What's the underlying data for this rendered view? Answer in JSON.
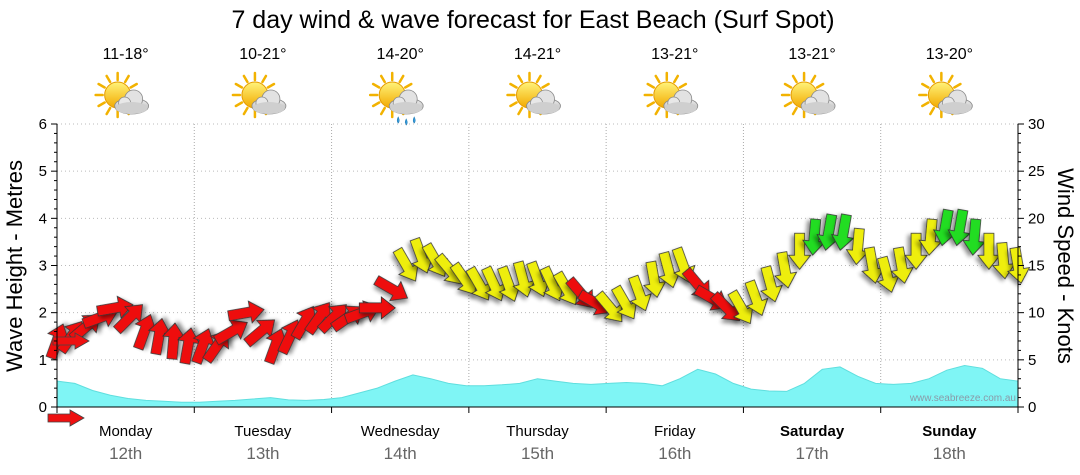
{
  "chart_data": {
    "type": "line",
    "title": "7 day wind & wave forecast for East Beach (Surf Spot)",
    "ylabel_left": "Wave Height - Metres",
    "ylabel_right": "Wind Speed - Knots",
    "ylim_left": [
      0,
      6
    ],
    "ylim_right": [
      0,
      30
    ],
    "yticks_left": [
      "0",
      "1",
      "2",
      "3",
      "4",
      "5",
      "6"
    ],
    "yticks_right": [
      "0",
      "5",
      "10",
      "15",
      "20",
      "25",
      "30"
    ],
    "days": [
      {
        "name": "Monday",
        "date": "12th",
        "temp": "11-18°",
        "weather": "partly-cloudy",
        "bold": false
      },
      {
        "name": "Tuesday",
        "date": "13th",
        "temp": "10-21°",
        "weather": "partly-cloudy",
        "bold": false
      },
      {
        "name": "Wednesday",
        "date": "14th",
        "temp": "14-20°",
        "weather": "showers",
        "bold": false
      },
      {
        "name": "Thursday",
        "date": "15th",
        "temp": "14-21°",
        "weather": "partly-cloudy",
        "bold": false
      },
      {
        "name": "Friday",
        "date": "16th",
        "temp": "13-21°",
        "weather": "partly-cloudy",
        "bold": false
      },
      {
        "name": "Saturday",
        "date": "17th",
        "temp": "13-21°",
        "weather": "partly-cloudy",
        "bold": true
      },
      {
        "name": "Sunday",
        "date": "18th",
        "temp": "13-20°",
        "weather": "partly-cloudy",
        "bold": true
      }
    ],
    "wave_height_m": [
      0.55,
      0.5,
      0.35,
      0.25,
      0.18,
      0.14,
      0.12,
      0.1,
      0.1,
      0.12,
      0.14,
      0.17,
      0.2,
      0.15,
      0.14,
      0.16,
      0.2,
      0.3,
      0.4,
      0.55,
      0.68,
      0.6,
      0.5,
      0.45,
      0.45,
      0.47,
      0.5,
      0.6,
      0.55,
      0.5,
      0.48,
      0.5,
      0.52,
      0.5,
      0.45,
      0.6,
      0.8,
      0.7,
      0.5,
      0.38,
      0.34,
      0.33,
      0.5,
      0.8,
      0.85,
      0.65,
      0.5,
      0.48,
      0.5,
      0.6,
      0.78,
      0.88,
      0.82,
      0.6,
      0.55
    ],
    "wind_knots": [
      7,
      7.5,
      8.5,
      9.5,
      10.5,
      9.5,
      8,
      7.5,
      7,
      6.5,
      6.5,
      6.5,
      8,
      10,
      8,
      6.5,
      7.5,
      9,
      9.5,
      9.5,
      9.5,
      10,
      10.5,
      12.5,
      15,
      16,
      15.5,
      14.5,
      13.5,
      13,
      13,
      13,
      13.5,
      13.5,
      13,
      12.5,
      12,
      11,
      10.5,
      11,
      12,
      13.5,
      14.5,
      15,
      13,
      11.5,
      10.5,
      10.5,
      11.5,
      13,
      14.5,
      16.5,
      18,
      18.5,
      18.5,
      17,
      15,
      14,
      15,
      16.5,
      18,
      19,
      19,
      18,
      16.5,
      15.5,
      15
    ],
    "wind_colors": [
      "#ee1010",
      "#ee1010",
      "#ee1010",
      "#ee1010",
      "#ee1010",
      "#ee1010",
      "#ee1010",
      "#ee1010",
      "#ee1010",
      "#ee1010",
      "#ee1010",
      "#ee1010",
      "#ee1010",
      "#ee1010",
      "#ee1010",
      "#ee1010",
      "#ee1010",
      "#ee1010",
      "#ee1010",
      "#ee1010",
      "#ee1010",
      "#ee1010",
      "#ee1010",
      "#ee1010",
      "#eeee10",
      "#eeee10",
      "#eeee10",
      "#eeee10",
      "#eeee10",
      "#eeee10",
      "#eeee10",
      "#eeee10",
      "#eeee10",
      "#eeee10",
      "#eeee10",
      "#eeee10",
      "#ee1010",
      "#ee1010",
      "#eeee10",
      "#eeee10",
      "#eeee10",
      "#eeee10",
      "#eeee10",
      "#eeee10",
      "#ee1010",
      "#ee1010",
      "#ee1010",
      "#eeee10",
      "#eeee10",
      "#eeee10",
      "#eeee10",
      "#eeee10",
      "#22dd22",
      "#22dd22",
      "#22dd22",
      "#eeee10",
      "#eeee10",
      "#eeee10",
      "#eeee10",
      "#eeee10",
      "#eeee10",
      "#22dd22",
      "#22dd22",
      "#22dd22",
      "#eeee10",
      "#eeee10",
      "#eeee10"
    ],
    "wind_dir_deg": [
      200,
      215,
      230,
      250,
      260,
      225,
      200,
      190,
      185,
      190,
      200,
      215,
      240,
      260,
      230,
      200,
      205,
      210,
      215,
      225,
      235,
      250,
      270,
      300,
      330,
      340,
      330,
      320,
      325,
      330,
      335,
      340,
      345,
      340,
      335,
      330,
      320,
      300,
      320,
      330,
      340,
      350,
      345,
      340,
      320,
      300,
      315,
      330,
      340,
      345,
      350,
      0,
      5,
      10,
      10,
      5,
      350,
      345,
      350,
      0,
      5,
      10,
      10,
      5,
      0,
      355,
      350
    ],
    "watermark": "www.seabreeze.com.au"
  }
}
